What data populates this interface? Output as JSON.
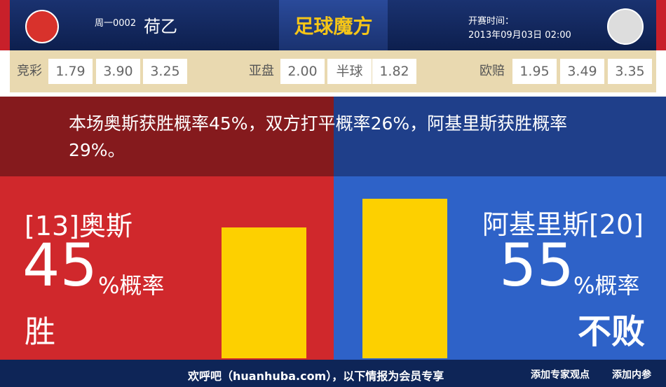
{
  "header": {
    "match_no": "周一0002",
    "league": "荷乙",
    "brand": "足球魔方",
    "kickoff_label": "开赛时间：",
    "kickoff_time": "2013年09月03日 02:00"
  },
  "odds": {
    "jingcai": {
      "label": "竞彩",
      "values": [
        "1.79",
        "3.90",
        "3.25"
      ]
    },
    "yapan": {
      "label": "亚盘",
      "values": [
        "2.00",
        "半球",
        "1.82"
      ]
    },
    "oupei": {
      "label": "欧赔",
      "values": [
        "1.95",
        "3.49",
        "3.35"
      ]
    }
  },
  "summary": "本场奥斯获胜概率45%，双方打平概率26%，阿基里斯获胜概率29%。",
  "home": {
    "team": "[13]奥斯",
    "percent": 45,
    "unit": "%概率",
    "outcome": "胜"
  },
  "away": {
    "team": "阿基里斯[20]",
    "percent": 55,
    "unit": "%概率",
    "outcome": "不败"
  },
  "footer": {
    "notice": "欢呼吧（huanhuba.com），以下情报为会员专享",
    "link1": "添加专家观点",
    "link2": "添加内参"
  }
}
